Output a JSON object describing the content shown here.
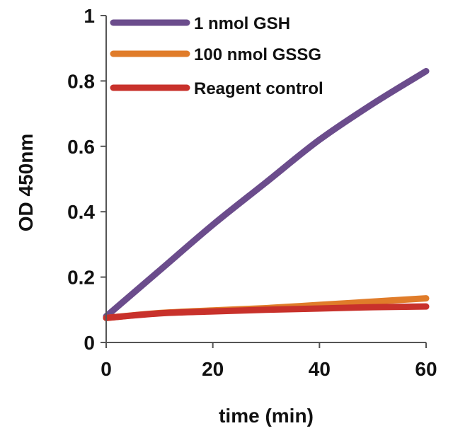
{
  "chart_data": {
    "type": "line",
    "title": "",
    "xlabel": "time (min)",
    "ylabel": "OD 450nm",
    "xlim": [
      0,
      60
    ],
    "ylim": [
      0,
      1
    ],
    "x_ticks": [
      0,
      20,
      40,
      60
    ],
    "y_ticks": [
      0,
      0.2,
      0.4,
      0.6,
      0.8,
      1
    ],
    "x_tick_labels": [
      "0",
      "20",
      "40",
      "60"
    ],
    "y_tick_labels": [
      "0",
      "0.2",
      "0.4",
      "0.6",
      "0.8",
      "1"
    ],
    "grid": false,
    "legend_position": "top-right",
    "series": [
      {
        "name": "1 nmol GSH",
        "color": "#6b4c8c",
        "x": [
          0,
          10,
          20,
          30,
          40,
          50,
          60
        ],
        "y": [
          0.08,
          0.22,
          0.36,
          0.49,
          0.62,
          0.73,
          0.83
        ]
      },
      {
        "name": "100 nmol GSSG",
        "color": "#e07c2a",
        "x": [
          0,
          10,
          20,
          30,
          40,
          50,
          60
        ],
        "y": [
          0.075,
          0.09,
          0.098,
          0.105,
          0.115,
          0.125,
          0.135
        ]
      },
      {
        "name": "Reagent control",
        "color": "#c8312b",
        "x": [
          0,
          10,
          20,
          30,
          40,
          50,
          60
        ],
        "y": [
          0.075,
          0.089,
          0.095,
          0.1,
          0.104,
          0.108,
          0.11
        ]
      }
    ]
  }
}
